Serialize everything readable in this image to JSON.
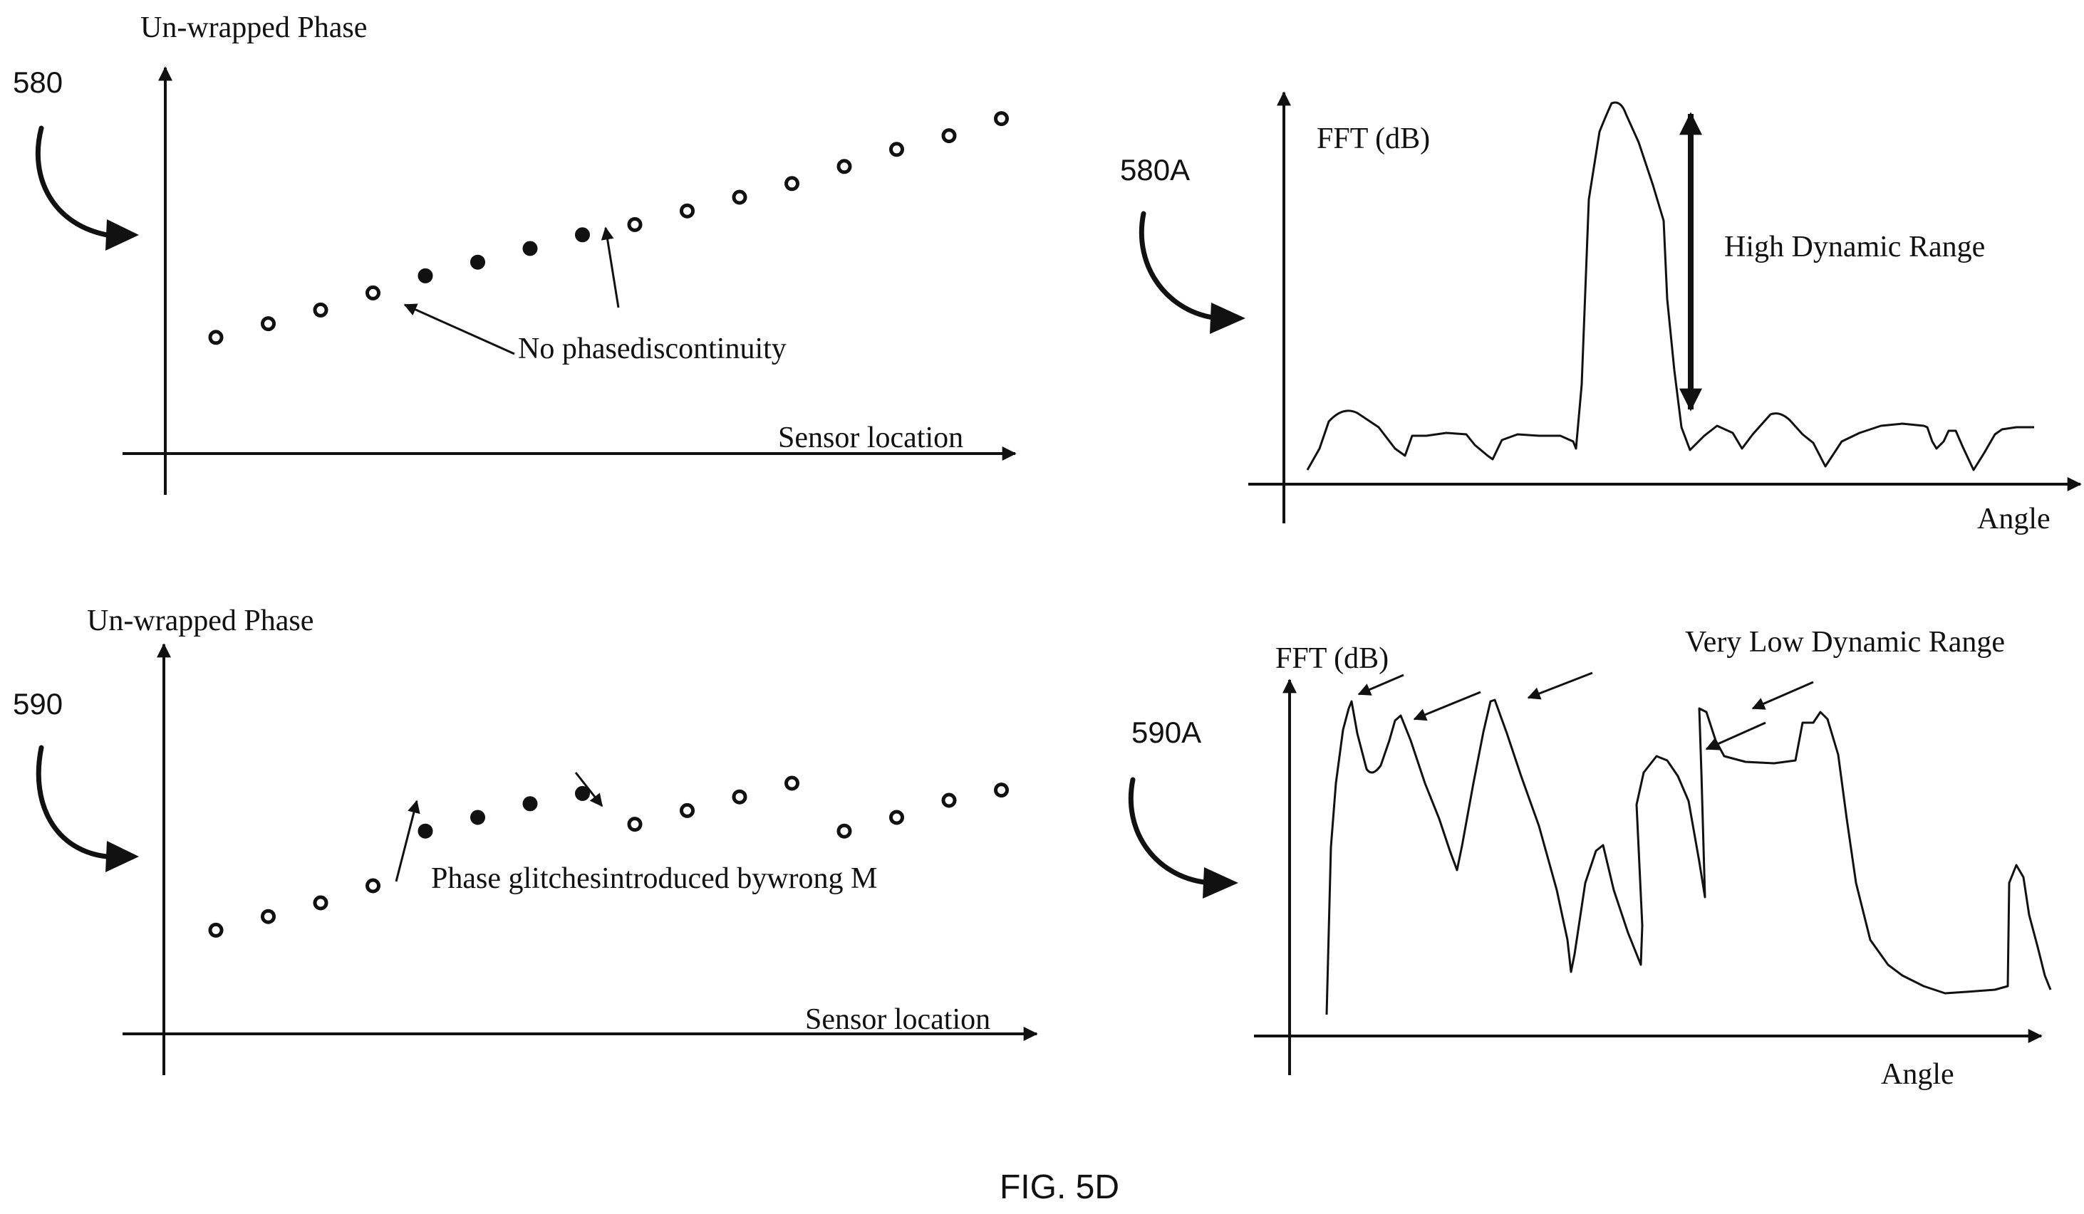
{
  "figure_caption": "FIG. 5D",
  "panels": {
    "p580": {
      "ref_label": "580",
      "y_axis_label": "Un-wrapped Phase",
      "x_axis_label": "Sensor location",
      "annotation": "No phasediscontinuity",
      "points": [
        {
          "s": 1,
          "phase": 1.9,
          "filled": false
        },
        {
          "s": 2,
          "phase": 2.3,
          "filled": false
        },
        {
          "s": 3,
          "phase": 2.7,
          "filled": false
        },
        {
          "s": 4,
          "phase": 3.2,
          "filled": false
        },
        {
          "s": 5,
          "phase": 3.7,
          "filled": true
        },
        {
          "s": 6,
          "phase": 4.1,
          "filled": true
        },
        {
          "s": 7,
          "phase": 4.5,
          "filled": true
        },
        {
          "s": 8,
          "phase": 4.9,
          "filled": true
        },
        {
          "s": 9,
          "phase": 5.2,
          "filled": false
        },
        {
          "s": 10,
          "phase": 5.6,
          "filled": false
        },
        {
          "s": 11,
          "phase": 6.0,
          "filled": false
        },
        {
          "s": 12,
          "phase": 6.4,
          "filled": false
        },
        {
          "s": 13,
          "phase": 6.9,
          "filled": false
        },
        {
          "s": 14,
          "phase": 7.4,
          "filled": false
        },
        {
          "s": 15,
          "phase": 7.8,
          "filled": false
        },
        {
          "s": 16,
          "phase": 8.3,
          "filled": false
        }
      ]
    },
    "p580A": {
      "ref_label": "580A",
      "y_axis_label": "FFT (dB)",
      "x_axis_label": "Angle",
      "annotation": "High Dynamic Range"
    },
    "p590": {
      "ref_label": "590",
      "y_axis_label": "Un-wrapped Phase",
      "x_axis_label": "Sensor location",
      "annotation": "Phase glitchesintroduced bywrong M",
      "points": [
        {
          "s": 1,
          "phase": 2.2,
          "filled": false
        },
        {
          "s": 2,
          "phase": 2.6,
          "filled": false
        },
        {
          "s": 3,
          "phase": 3.0,
          "filled": false
        },
        {
          "s": 4,
          "phase": 3.5,
          "filled": false
        },
        {
          "s": 5,
          "phase": 5.1,
          "filled": true
        },
        {
          "s": 6,
          "phase": 5.5,
          "filled": true
        },
        {
          "s": 7,
          "phase": 5.9,
          "filled": true
        },
        {
          "s": 8,
          "phase": 6.2,
          "filled": true
        },
        {
          "s": 9,
          "phase": 5.3,
          "filled": false
        },
        {
          "s": 10,
          "phase": 5.7,
          "filled": false
        },
        {
          "s": 11,
          "phase": 6.1,
          "filled": false
        },
        {
          "s": 12,
          "phase": 6.5,
          "filled": false
        },
        {
          "s": 13,
          "phase": 5.1,
          "filled": false
        },
        {
          "s": 14,
          "phase": 5.5,
          "filled": false
        },
        {
          "s": 15,
          "phase": 6.0,
          "filled": false
        },
        {
          "s": 16,
          "phase": 6.3,
          "filled": false
        }
      ]
    },
    "p590A": {
      "ref_label": "590A",
      "y_axis_label": "FFT (dB)",
      "x_axis_label": "Angle",
      "annotation": "Very Low Dynamic Range"
    }
  }
}
